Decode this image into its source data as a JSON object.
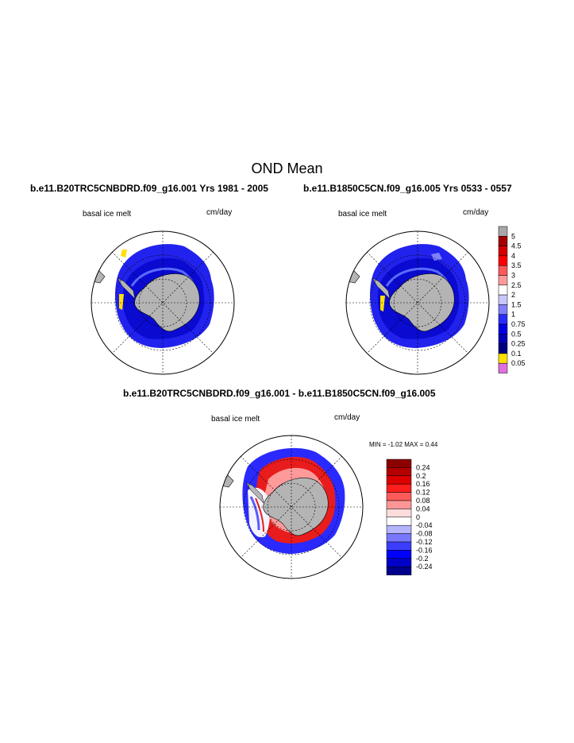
{
  "page": {
    "title": "OND Mean"
  },
  "panels": [
    {
      "title": "b.e11.B20TRC5CNBDRD.f09_g16.001  Yrs 1981 - 2005",
      "left_label": "basal ice melt",
      "right_label": "cm/day"
    },
    {
      "title": "b.e11.B1850C5CN.f09_g16.005  Yrs 0533 - 0557",
      "left_label": "basal ice melt",
      "right_label": "cm/day"
    },
    {
      "title": "b.e11.B20TRC5CNBDRD.f09_g16.001 - b.e11.B1850C5CN.f09_g16.005",
      "left_label": "basal ice melt",
      "right_label": "cm/day",
      "minmax": "MIN =  -1.02 MAX =   0.44"
    }
  ],
  "chart_data": [
    {
      "type": "heatmap",
      "title": "b.e11.B20TRC5CNBDRD.f09_g16.001  Yrs 1981 - 2005",
      "xlabel": "",
      "ylabel": "",
      "colorbar": {
        "levels": [
          "5",
          "4.5",
          "4",
          "3.5",
          "3",
          "2.5",
          "2",
          "1.5",
          "1",
          "0.75",
          "0.5",
          "0.25",
          "0.1",
          "0.05"
        ],
        "colors": [
          "#a8a8a8",
          "#a50000",
          "#d40000",
          "#ff0000",
          "#ff5a5a",
          "#ff9a9a",
          "#ffffff",
          "#c8c8ff",
          "#8080ff",
          "#2a2aff",
          "#0000e6",
          "#0000b4",
          "#000080",
          "#ffe000",
          "#e070e0"
        ]
      }
    },
    {
      "type": "heatmap",
      "title": "b.e11.B1850C5CN.f09_g16.005  Yrs 0533 - 0557",
      "xlabel": "",
      "ylabel": ""
    },
    {
      "type": "heatmap",
      "title": "b.e11.B20TRC5CNBDRD.f09_g16.001 - b.e11.B1850C5CN.f09_g16.005",
      "xlabel": "",
      "ylabel": "",
      "min": -1.02,
      "max": 0.44,
      "colorbar": {
        "levels": [
          "0.24",
          "0.2",
          "0.16",
          "0.12",
          "0.08",
          "0.04",
          "0",
          "-0.04",
          "-0.08",
          "-0.12",
          "-0.16",
          "-0.2",
          "-0.24"
        ],
        "colors": [
          "#8c0000",
          "#b40000",
          "#dc0000",
          "#ff1e1e",
          "#ff5a5a",
          "#ff9696",
          "#ffdcdc",
          "#ffffff",
          "#b4b4ff",
          "#7878ff",
          "#3c3cff",
          "#0000ff",
          "#0000c8",
          "#00008c"
        ]
      }
    }
  ]
}
